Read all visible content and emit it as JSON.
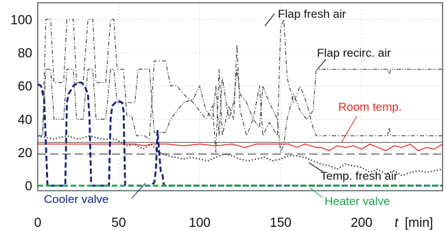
{
  "chart_data": {
    "type": "line",
    "xlabel": "t [min]",
    "ylabel": "",
    "xlim": [
      0,
      250
    ],
    "ylim": [
      -3,
      110
    ],
    "x_ticks": [
      0,
      50,
      100,
      150,
      200
    ],
    "y_ticks": [
      0,
      20,
      40,
      60,
      80,
      100
    ],
    "grid": true,
    "series": [
      {
        "name": "Flap fresh air",
        "color": "#333333",
        "style": "dash-dot",
        "points": [
          [
            0,
            30
          ],
          [
            3,
            30
          ],
          [
            5,
            100
          ],
          [
            8,
            100
          ],
          [
            10,
            62
          ],
          [
            16,
            62
          ],
          [
            18,
            100
          ],
          [
            22,
            100
          ],
          [
            24,
            62
          ],
          [
            28,
            62
          ],
          [
            31,
            100
          ],
          [
            34,
            100
          ],
          [
            36,
            62
          ],
          [
            42,
            62
          ],
          [
            45,
            100
          ],
          [
            47,
            100
          ],
          [
            49,
            70
          ],
          [
            53,
            70
          ],
          [
            55,
            42
          ],
          [
            58,
            42
          ],
          [
            61,
            30
          ],
          [
            66,
            30
          ],
          [
            69,
            28
          ],
          [
            72,
            75
          ],
          [
            79,
            75
          ],
          [
            82,
            60
          ],
          [
            86,
            60
          ],
          [
            90,
            55
          ],
          [
            96,
            50
          ],
          [
            100,
            45
          ],
          [
            104,
            40
          ],
          [
            108,
            48
          ],
          [
            110,
            20
          ],
          [
            112,
            70
          ],
          [
            114,
            30
          ],
          [
            118,
            48
          ],
          [
            121,
            40
          ],
          [
            123,
            85
          ],
          [
            125,
            45
          ],
          [
            129,
            30
          ],
          [
            133,
            40
          ],
          [
            137,
            60
          ],
          [
            139,
            30
          ],
          [
            143,
            38
          ],
          [
            148,
            30
          ],
          [
            150,
            95
          ],
          [
            152,
            100
          ],
          [
            154,
            65
          ],
          [
            158,
            50
          ],
          [
            162,
            60
          ],
          [
            166,
            50
          ],
          [
            170,
            35
          ],
          [
            172,
            30
          ],
          [
            190,
            30
          ],
          [
            200,
            30
          ],
          [
            216,
            30
          ],
          [
            217,
            35
          ],
          [
            218,
            30
          ],
          [
            230,
            30
          ],
          [
            250,
            30
          ]
        ]
      },
      {
        "name": "Flap recirc. air",
        "color": "#333333",
        "style": "dash-dot-dot",
        "points": [
          [
            0,
            30
          ],
          [
            3,
            30
          ],
          [
            5,
            70
          ],
          [
            8,
            70
          ],
          [
            10,
            40
          ],
          [
            16,
            40
          ],
          [
            18,
            70
          ],
          [
            22,
            70
          ],
          [
            24,
            40
          ],
          [
            28,
            40
          ],
          [
            31,
            70
          ],
          [
            34,
            70
          ],
          [
            36,
            40
          ],
          [
            42,
            40
          ],
          [
            45,
            70
          ],
          [
            47,
            70
          ],
          [
            49,
            50
          ],
          [
            53,
            50
          ],
          [
            55,
            50
          ],
          [
            60,
            50
          ],
          [
            62,
            70
          ],
          [
            66,
            70
          ],
          [
            69,
            70
          ],
          [
            72,
            32
          ],
          [
            79,
            32
          ],
          [
            82,
            40
          ],
          [
            86,
            45
          ],
          [
            90,
            50
          ],
          [
            96,
            52
          ],
          [
            100,
            60
          ],
          [
            104,
            45
          ],
          [
            108,
            40
          ],
          [
            110,
            60
          ],
          [
            112,
            30
          ],
          [
            114,
            65
          ],
          [
            118,
            40
          ],
          [
            121,
            50
          ],
          [
            123,
            70
          ],
          [
            125,
            55
          ],
          [
            129,
            50
          ],
          [
            133,
            40
          ],
          [
            137,
            35
          ],
          [
            139,
            60
          ],
          [
            143,
            50
          ],
          [
            148,
            40
          ],
          [
            150,
            20
          ],
          [
            152,
            25
          ],
          [
            154,
            40
          ],
          [
            158,
            55
          ],
          [
            162,
            45
          ],
          [
            166,
            40
          ],
          [
            170,
            45
          ],
          [
            172,
            70
          ],
          [
            190,
            70
          ],
          [
            200,
            70
          ],
          [
            216,
            70
          ],
          [
            217,
            67
          ],
          [
            218,
            70
          ],
          [
            230,
            70
          ],
          [
            250,
            70
          ]
        ]
      },
      {
        "name": "Room temp.",
        "color": "#e3251f",
        "style": "solid",
        "points": [
          [
            0,
            25
          ],
          [
            60,
            25
          ],
          [
            66,
            24
          ],
          [
            70,
            25
          ],
          [
            80,
            25
          ],
          [
            90,
            24
          ],
          [
            100,
            25
          ],
          [
            110,
            24
          ],
          [
            120,
            25
          ],
          [
            128,
            23
          ],
          [
            135,
            25
          ],
          [
            145,
            25
          ],
          [
            155,
            25
          ],
          [
            160,
            23
          ],
          [
            165,
            25
          ],
          [
            172,
            23
          ],
          [
            175,
            23
          ],
          [
            180,
            21
          ],
          [
            185,
            24
          ],
          [
            190,
            23
          ],
          [
            195,
            24
          ],
          [
            200,
            22
          ],
          [
            205,
            25
          ],
          [
            210,
            23
          ],
          [
            215,
            21
          ],
          [
            220,
            24
          ],
          [
            225,
            23
          ],
          [
            230,
            25
          ],
          [
            235,
            21
          ],
          [
            240,
            23
          ],
          [
            245,
            22
          ],
          [
            250,
            25
          ]
        ]
      },
      {
        "name": "Temp. fresh air",
        "color": "#222222",
        "style": "dotted",
        "points": [
          [
            0,
            30
          ],
          [
            10,
            28
          ],
          [
            18,
            30
          ],
          [
            25,
            28
          ],
          [
            32,
            30
          ],
          [
            40,
            28
          ],
          [
            48,
            28
          ],
          [
            55,
            24
          ],
          [
            60,
            25
          ],
          [
            65,
            22
          ],
          [
            70,
            25
          ],
          [
            75,
            20
          ],
          [
            80,
            18
          ],
          [
            85,
            17
          ],
          [
            90,
            16
          ],
          [
            95,
            17
          ],
          [
            100,
            16
          ],
          [
            105,
            15
          ],
          [
            110,
            17
          ],
          [
            115,
            19
          ],
          [
            120,
            18
          ],
          [
            125,
            16
          ],
          [
            130,
            15
          ],
          [
            135,
            16
          ],
          [
            140,
            17
          ],
          [
            145,
            15
          ],
          [
            150,
            16
          ],
          [
            155,
            18
          ],
          [
            160,
            18
          ],
          [
            165,
            17
          ],
          [
            170,
            15
          ],
          [
            175,
            13
          ],
          [
            180,
            12
          ],
          [
            185,
            10
          ],
          [
            190,
            13
          ],
          [
            195,
            12
          ],
          [
            200,
            11
          ],
          [
            205,
            8
          ],
          [
            210,
            10
          ],
          [
            215,
            7
          ],
          [
            220,
            9
          ],
          [
            225,
            6
          ],
          [
            230,
            8
          ],
          [
            235,
            9
          ],
          [
            240,
            8
          ],
          [
            245,
            9
          ],
          [
            250,
            10
          ]
        ]
      },
      {
        "name": "Cooler valve",
        "color": "#1a237e",
        "style": "dashed",
        "points": [
          [
            0,
            61
          ],
          [
            2,
            60
          ],
          [
            4,
            52
          ],
          [
            6,
            0
          ],
          [
            10,
            0
          ],
          [
            17,
            0
          ],
          [
            18,
            50
          ],
          [
            19,
            55
          ],
          [
            22,
            60
          ],
          [
            25,
            62
          ],
          [
            27,
            62
          ],
          [
            29,
            60
          ],
          [
            31,
            55
          ],
          [
            32,
            40
          ],
          [
            33,
            0
          ],
          [
            36,
            0
          ],
          [
            44,
            0
          ],
          [
            45,
            40
          ],
          [
            46,
            48
          ],
          [
            48,
            50
          ],
          [
            50,
            51
          ],
          [
            52,
            50
          ],
          [
            53,
            45
          ],
          [
            54,
            0
          ],
          [
            60,
            0
          ],
          [
            70,
            0
          ],
          [
            72,
            2
          ],
          [
            73,
            10
          ],
          [
            74,
            33
          ],
          [
            75,
            20
          ],
          [
            76,
            8
          ],
          [
            77,
            7
          ],
          [
            78,
            0
          ],
          [
            80,
            0
          ],
          [
            250,
            0
          ]
        ]
      },
      {
        "name": "Heater valve",
        "color": "#1e9e4a",
        "style": "dashed",
        "points": [
          [
            0,
            0
          ],
          [
            250,
            0
          ]
        ]
      }
    ],
    "reference_lines": [
      {
        "y": 26,
        "color": "#777777",
        "style": "solid"
      },
      {
        "y": 19,
        "color": "#555555",
        "style": "dashed"
      }
    ],
    "annotations": [
      {
        "text": "Flap fresh air",
        "color": "#111111"
      },
      {
        "text": "Flap recirc. air",
        "color": "#111111"
      },
      {
        "text": "Room temp.",
        "color": "#e3251f"
      },
      {
        "text": "Temp. fresh air",
        "color": "#111111"
      },
      {
        "text": "Cooler valve",
        "color": "#1a237e"
      },
      {
        "text": "Heater valve",
        "color": "#1e9e4a"
      }
    ]
  }
}
